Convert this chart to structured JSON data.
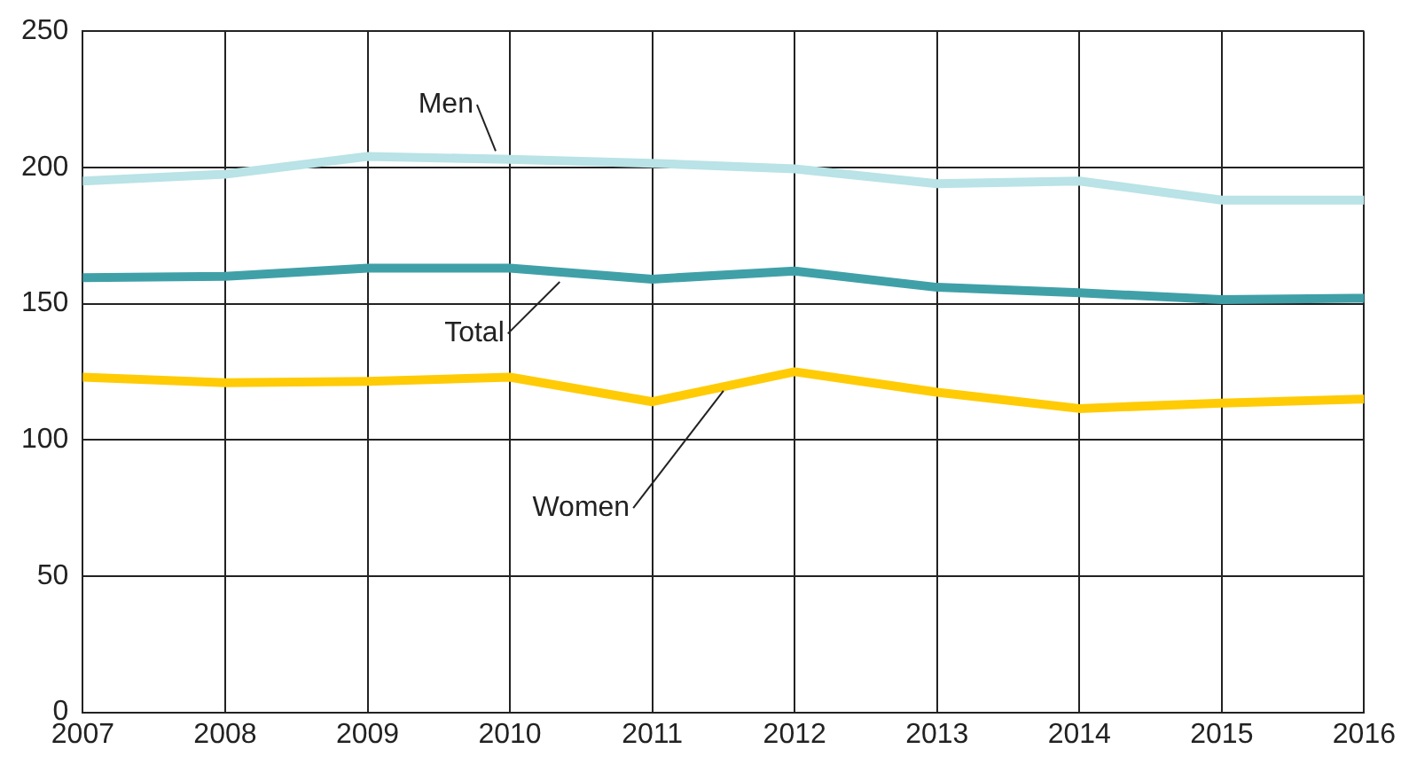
{
  "chart_data": {
    "type": "line",
    "x": [
      2007,
      2008,
      2009,
      2010,
      2011,
      2012,
      2013,
      2014,
      2015,
      2016
    ],
    "series": [
      {
        "name": "Men",
        "color": "#b9e3e6",
        "values": [
          195,
          197.5,
          204,
          203,
          201.5,
          199.5,
          194,
          195,
          188,
          188
        ]
      },
      {
        "name": "Total",
        "color": "#40a0a8",
        "values": [
          159.5,
          160,
          163,
          163,
          159,
          162,
          156,
          154,
          151.5,
          152
        ]
      },
      {
        "name": "Women",
        "color": "#ffcb05",
        "values": [
          123,
          121,
          121.5,
          123,
          114,
          125,
          117.5,
          111.5,
          113.5,
          115
        ]
      }
    ],
    "xlim": [
      2007,
      2016
    ],
    "xticks": [
      2007,
      2008,
      2009,
      2010,
      2011,
      2012,
      2013,
      2014,
      2015,
      2016
    ],
    "ylim": [
      0,
      250
    ],
    "yticks": [
      0,
      50,
      100,
      150,
      200,
      250
    ],
    "grid": true,
    "legend": false,
    "marker": "none",
    "line_style": "solid"
  }
}
